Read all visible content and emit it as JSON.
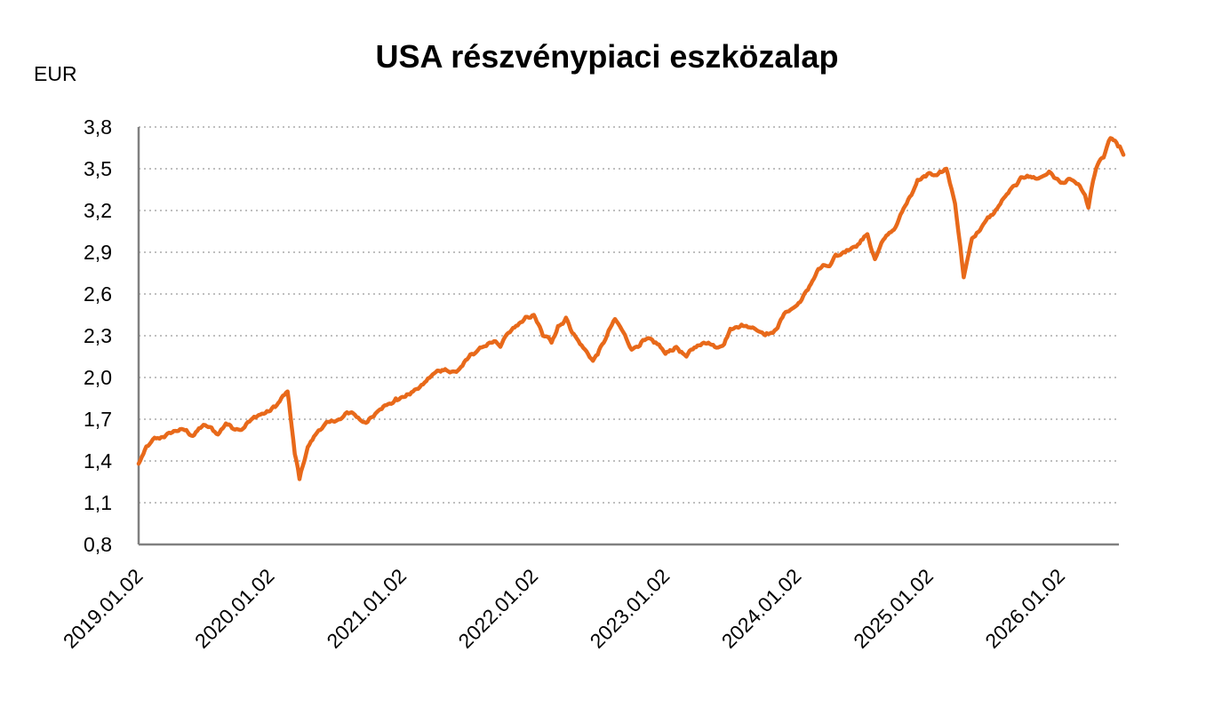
{
  "chart_data": {
    "type": "line",
    "title": "USA részvénypiaci eszközalap",
    "ylabel": "EUR",
    "xlabel": "",
    "ylim": [
      0.8,
      3.8
    ],
    "y_ticks": [
      "0,8",
      "1,1",
      "1,4",
      "1,7",
      "2,0",
      "2,3",
      "2,6",
      "2,9",
      "3,2",
      "3,5",
      "3,8"
    ],
    "x_ticks": [
      "2019.01.02",
      "2020.01.02",
      "2021.01.02",
      "2022.01.02",
      "2023.01.02",
      "2024.01.02",
      "2025.01.02",
      "2026.01.02"
    ],
    "grid": "horizontal dotted",
    "line_color": "#E8691A",
    "series": [
      {
        "x": [
          "2019.01.02",
          "2019.01.15",
          "2019.02.01",
          "2019.03.01",
          "2019.04.01",
          "2019.05.01",
          "2019.06.01",
          "2019.07.01",
          "2019.08.10",
          "2019.09.01",
          "2019.10.01",
          "2019.11.01",
          "2019.12.01",
          "2020.01.02",
          "2020.01.20",
          "2020.02.19",
          "2020.03.10",
          "2020.03.23",
          "2020.04.15",
          "2020.05.15",
          "2020.06.15",
          "2020.07.15",
          "2020.08.15",
          "2020.09.15",
          "2020.10.15",
          "2020.11.15",
          "2020.12.15",
          "2021.01.02",
          "2021.02.01",
          "2021.03.01",
          "2021.04.01",
          "2021.05.01",
          "2021.06.01",
          "2021.07.01",
          "2021.08.01",
          "2021.09.01",
          "2021.10.01",
          "2021.11.01",
          "2021.12.01",
          "2022.01.02",
          "2022.01.27",
          "2022.02.20",
          "2022.03.10",
          "2022.04.01",
          "2022.05.01",
          "2022.06.15",
          "2022.07.15",
          "2022.08.15",
          "2022.09.30",
          "2022.11.01",
          "2022.12.01",
          "2023.01.02",
          "2023.02.01",
          "2023.03.01",
          "2023.04.01",
          "2023.05.01",
          "2023.06.01",
          "2023.07.01",
          "2023.08.01",
          "2023.09.01",
          "2023.10.27",
          "2023.12.01",
          "2024.01.02",
          "2024.02.01",
          "2024.03.01",
          "2024.04.01",
          "2024.05.01",
          "2024.06.01",
          "2024.07.15",
          "2024.08.05",
          "2024.09.01",
          "2024.10.01",
          "2024.11.01",
          "2024.12.01",
          "2025.01.02",
          "2025.02.01",
          "2025.02.19",
          "2025.03.15",
          "2025.04.08",
          "2025.05.01",
          "2025.06.01",
          "2025.07.01",
          "2025.08.01",
          "2025.09.01",
          "2025.10.01",
          "2025.11.01",
          "2025.12.01",
          "2026.01.02",
          "2026.02.01",
          "2026.03.01",
          "2026.03.20",
          "2026.04.10",
          "2026.05.01",
          "2026.05.20",
          "2026.06.10",
          "2026.06.25"
        ],
        "y": [
          1.38,
          1.45,
          1.52,
          1.56,
          1.6,
          1.63,
          1.58,
          1.66,
          1.59,
          1.67,
          1.63,
          1.68,
          1.73,
          1.76,
          1.8,
          1.9,
          1.45,
          1.27,
          1.5,
          1.62,
          1.68,
          1.7,
          1.75,
          1.68,
          1.72,
          1.8,
          1.85,
          1.86,
          1.9,
          1.95,
          2.03,
          2.06,
          2.04,
          2.13,
          2.2,
          2.25,
          2.22,
          2.34,
          2.4,
          2.45,
          2.3,
          2.25,
          2.37,
          2.43,
          2.28,
          2.12,
          2.25,
          2.42,
          2.2,
          2.27,
          2.25,
          2.17,
          2.22,
          2.15,
          2.23,
          2.25,
          2.22,
          2.35,
          2.38,
          2.36,
          2.32,
          2.47,
          2.52,
          2.63,
          2.78,
          2.8,
          2.88,
          2.93,
          3.03,
          2.85,
          3.0,
          3.08,
          3.25,
          3.42,
          3.47,
          3.48,
          3.5,
          3.25,
          2.72,
          3.0,
          3.1,
          3.18,
          3.3,
          3.38,
          3.45,
          3.43,
          3.48,
          3.4,
          3.42,
          3.35,
          3.22,
          3.5,
          3.58,
          3.72,
          3.66,
          3.6
        ]
      }
    ]
  }
}
